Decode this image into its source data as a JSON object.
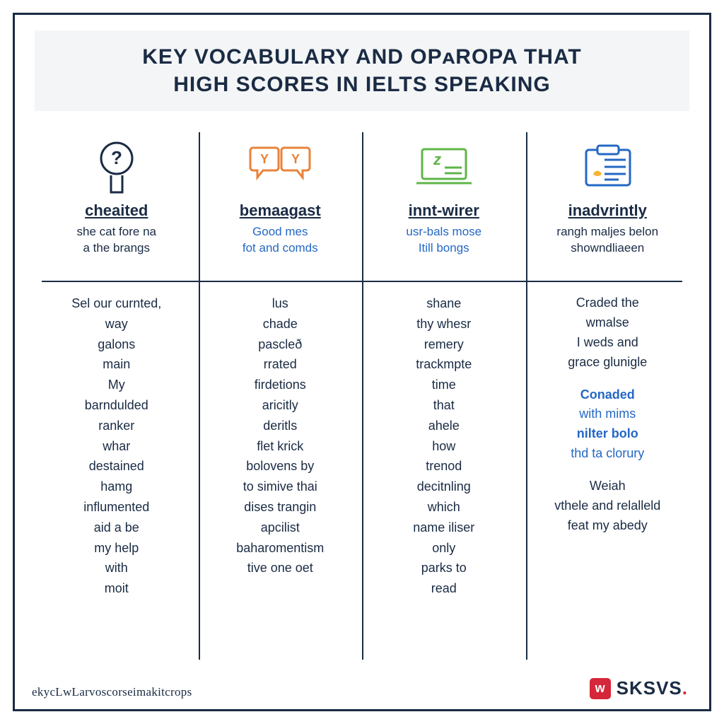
{
  "colors": {
    "frame_border": "#1a2b44",
    "title_bg": "#f4f5f6",
    "text_dark": "#1a2b44",
    "text_blue": "#2468c4",
    "icon_orange": "#e8833a",
    "icon_green": "#5fb548",
    "icon_blue": "#2468c4",
    "icon_yellow": "#f5b638",
    "brand_red": "#d6273a"
  },
  "title": {
    "line1": "KEY VOCABULARY AND OPᴀROPA THAT",
    "line2": "HIGH  SCORES IN IELTS SPEAKING"
  },
  "columns": [
    {
      "icon": "question-head",
      "icon_color": "#1a2b44",
      "word": "cheaited",
      "sub": "she cat fore na\na the brangs",
      "sub_style": "dark",
      "list": [
        "Sel our curnted,",
        "way",
        "galons",
        "main",
        "My",
        "barndulded",
        "ranker",
        "whar",
        "destained",
        "hamg",
        "influmented",
        "aid a be",
        "my help",
        "with",
        "moit"
      ]
    },
    {
      "icon": "chat-bubbles",
      "icon_color": "#e8833a",
      "word": "bemaagast",
      "sub": "Good mes\nfot and comds",
      "sub_style": "blue",
      "list": [
        "lus",
        "chade",
        "pascleð",
        "rrated",
        "firdetions",
        "aricitly",
        "deritls",
        "flet krick",
        "bolovens by",
        "to simive thai",
        "dises trangin",
        "apcilist",
        "baharomentism",
        "tive one oet"
      ]
    },
    {
      "icon": "laptop",
      "icon_color": "#5fb548",
      "word": "innt-wirer",
      "sub": "usr-bals mose\nItill bongs",
      "sub_style": "blue",
      "list": [
        "shane",
        "thy whesr",
        "remery",
        "trackmpte",
        "time",
        "that",
        "ahele",
        "how",
        "trenod",
        "decitnling",
        "which",
        "name iliser",
        "only",
        "parks to",
        "read"
      ]
    },
    {
      "icon": "clipboard",
      "icon_color": "#2468c4",
      "word": "inadvrintly",
      "sub": "rangh maljes belon\nshowndliaeen",
      "sub_style": "dark",
      "paras": [
        {
          "text": "Craded the\nwmalse\nI weds and\ngrace glunigle",
          "style": "dark"
        },
        {
          "text": "Conaded\nwith mims\nnilter bolo\nthd ta clorury",
          "style": "blue-accent"
        },
        {
          "text": "Weiah\nvthele and relalleld\nfeat my abedy",
          "style": "dark"
        }
      ]
    }
  ],
  "footer": "ekycLwLarvoscorseimakitcrops",
  "brand": {
    "box": "w",
    "text": "SKSVS",
    "dot": "."
  }
}
